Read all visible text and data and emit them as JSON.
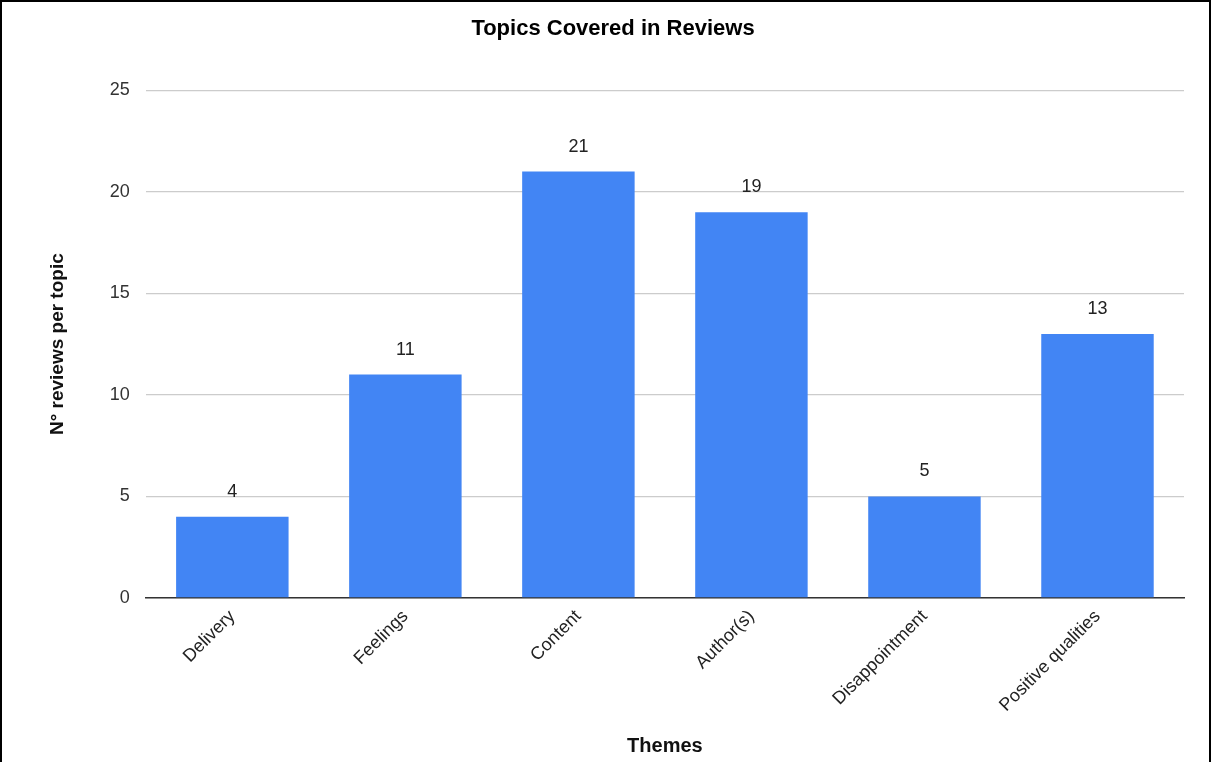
{
  "chart_data": {
    "type": "bar",
    "title": "Topics Covered in Reviews",
    "xlabel": "Themes",
    "ylabel": "N° reviews per topic",
    "categories": [
      "Delivery",
      "Feelings",
      "Content",
      "Author(s)",
      "Disappointment",
      "Positive qualities"
    ],
    "values": [
      4,
      11,
      21,
      19,
      5,
      13
    ],
    "color": "#4285f4",
    "ylim": [
      0,
      25
    ],
    "yticks": [
      0,
      5,
      10,
      15,
      20,
      25
    ],
    "grid": "y",
    "data_labels": true
  }
}
